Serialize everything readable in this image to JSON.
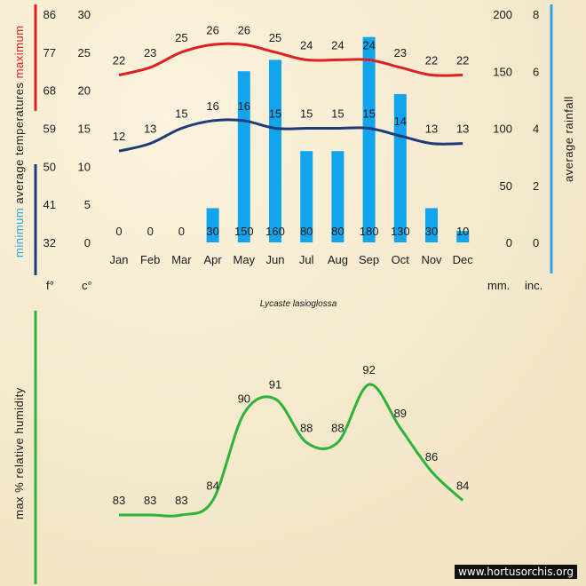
{
  "species": "Lycaste lasioglossa",
  "credit": "www.hortusorchis.org",
  "colors": {
    "max": "#e02020",
    "min": "#1e3a78",
    "rain": "#12a5ee",
    "humidity": "#2db33a",
    "rainAxis": "#2aa6e6"
  },
  "chart_data": [
    {
      "type": "bar+line",
      "categories": [
        "Jan",
        "Feb",
        "Mar",
        "Apr",
        "May",
        "Jun",
        "Jul",
        "Aug",
        "Sep",
        "Oct",
        "Nov",
        "Dec"
      ],
      "series": [
        {
          "name": "maximum",
          "type": "line",
          "values": [
            22,
            23,
            25,
            26,
            26,
            25,
            24,
            24,
            24,
            23,
            22,
            22
          ]
        },
        {
          "name": "minimum",
          "type": "line",
          "values": [
            12,
            13,
            15,
            16,
            16,
            15,
            15,
            15,
            15,
            14,
            13,
            13
          ]
        },
        {
          "name": "average rainfall",
          "type": "bar",
          "unit": "mm",
          "values": [
            0,
            0,
            0,
            30,
            150,
            160,
            80,
            80,
            180,
            130,
            30,
            10
          ]
        }
      ],
      "left_axis_f": {
        "ticks": [
          "86",
          "77",
          "68",
          "59",
          "50",
          "41",
          "32"
        ]
      },
      "left_axis_c": {
        "ticks": [
          "30",
          "25",
          "20",
          "15",
          "10",
          "5",
          "0"
        ],
        "ylim": [
          0,
          30
        ]
      },
      "right_axis_mm": {
        "ticks": [
          "200",
          "150",
          "100",
          "50",
          "0"
        ],
        "ylim": [
          0,
          200
        ]
      },
      "right_axis_inc": {
        "ticks": [
          "8",
          "6",
          "4",
          "2",
          "0"
        ]
      },
      "ylabel_left": {
        "min": "minimum",
        "avg": "average",
        "temp": "temperatures",
        "max": "maximum"
      },
      "ylabel_right": "average rainfall",
      "units": {
        "f": "f°",
        "c": "c°",
        "mm": "mm.",
        "inc": "inc."
      }
    },
    {
      "type": "line",
      "ylabel": "max % relative humidity",
      "categories": [
        "Jan",
        "Feb",
        "Mar",
        "Apr",
        "May",
        "Jun",
        "Jul",
        "Aug",
        "Sep",
        "Oct",
        "Nov",
        "Dec"
      ],
      "values": [
        83,
        83,
        83,
        84,
        90,
        91,
        88,
        88,
        92,
        89,
        86,
        84
      ],
      "ylim": [
        83,
        92
      ]
    }
  ]
}
